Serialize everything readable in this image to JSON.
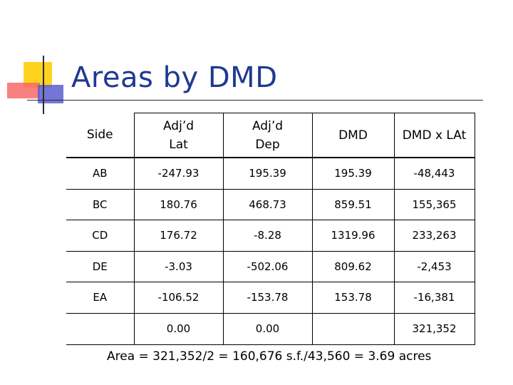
{
  "slide": {
    "title": "Areas by DMD",
    "footnote": "Area = 321,352/2 = 160,676 s.f./43,560 = 3.69 acres"
  },
  "table": {
    "headers": {
      "side": "Side",
      "adj_lat_1": "Adj’d",
      "adj_lat_2": "Lat",
      "adj_dep_1": "Adj’d",
      "adj_dep_2": "Dep",
      "dmd": "DMD",
      "dmd_x_lat": "DMD x LAt"
    },
    "rows": [
      [
        "AB",
        "-247.93",
        "195.39",
        "195.39",
        "-48,443"
      ],
      [
        "BC",
        "180.76",
        "468.73",
        "859.51",
        "155,365"
      ],
      [
        "CD",
        "176.72",
        "-8.28",
        "1319.96",
        "233,263"
      ],
      [
        "DE",
        "-3.03",
        "-502.06",
        "809.62",
        "-2,453"
      ],
      [
        "EA",
        "-106.52",
        "-153.78",
        "153.78",
        "-16,381"
      ]
    ],
    "totals": {
      "side": "",
      "lat": "0.00",
      "dep": "0.00",
      "dmd": "",
      "dmd_x_lat": "321,352"
    }
  }
}
